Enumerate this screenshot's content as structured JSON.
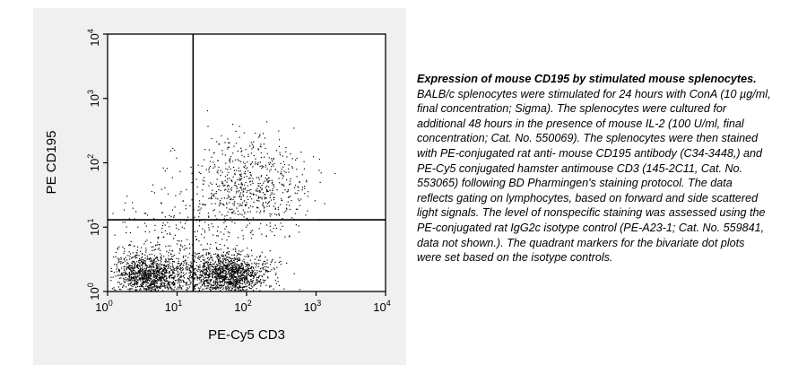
{
  "chart_data": {
    "type": "scatter",
    "xlabel": "PE-Cy5 CD3",
    "ylabel": "PE CD195",
    "x_scale": "log",
    "y_scale": "log",
    "xlim": [
      1,
      10000
    ],
    "ylim": [
      1,
      10000
    ],
    "x_ticks": [
      {
        "base": "10",
        "exp": "0",
        "value": 1
      },
      {
        "base": "10",
        "exp": "1",
        "value": 10
      },
      {
        "base": "10",
        "exp": "2",
        "value": 100
      },
      {
        "base": "10",
        "exp": "3",
        "value": 1000
      },
      {
        "base": "10",
        "exp": "4",
        "value": 10000
      }
    ],
    "y_ticks": [
      {
        "base": "10",
        "exp": "0",
        "value": 1
      },
      {
        "base": "10",
        "exp": "1",
        "value": 10
      },
      {
        "base": "10",
        "exp": "2",
        "value": 100
      },
      {
        "base": "10",
        "exp": "3",
        "value": 1000
      },
      {
        "base": "10",
        "exp": "4",
        "value": 10000
      }
    ],
    "quadrant_gates": {
      "x": 17,
      "y": 13
    },
    "populations": [
      {
        "center_x": 4,
        "center_y": 1.8,
        "spread_x": 0.28,
        "spread_y": 0.17,
        "count": 1200
      },
      {
        "center_x": 55,
        "center_y": 1.8,
        "spread_x": 0.3,
        "spread_y": 0.17,
        "count": 1400
      },
      {
        "center_x": 120,
        "center_y": 45,
        "spread_x": 0.42,
        "spread_y": 0.36,
        "count": 650
      },
      {
        "center_x": 10,
        "center_y": 6,
        "spread_x": 0.55,
        "spread_y": 0.45,
        "count": 300
      }
    ],
    "grid": false,
    "legend": "none"
  },
  "caption": {
    "title": "Expression of mouse CD195 by stimulated mouse splenocytes.",
    "body": " BALB/c splenocytes were stimulated for 24 hours with ConA (10 µg/ml, final concentration; Sigma). The splenocytes were cultured for additional 48 hours in the presence of mouse IL-2 (100 U/ml, final concentration; Cat. No. 550069). The splenocytes were then stained with PE-conjugated rat anti- mouse CD195 antibody (C34-3448,) and PE-Cy5 conjugated hamster antimouse CD3 (145-2C11, Cat. No. 553065) following BD Pharmingen's staining protocol. The data reflects gating on lymphocytes, based on forward and side scattered light signals. The level of nonspecific staining was assessed using the PE-conjugated rat IgG2c isotype control (PE-A23-1; Cat. No. 559841, data not shown.). The quadrant markers for the bivariate dot plots were set based on the isotype controls."
  },
  "colors": {
    "panel_background": "#f0f0f0",
    "plot_background": "#ffffff",
    "dots": "#000000",
    "lines": "#000000"
  }
}
